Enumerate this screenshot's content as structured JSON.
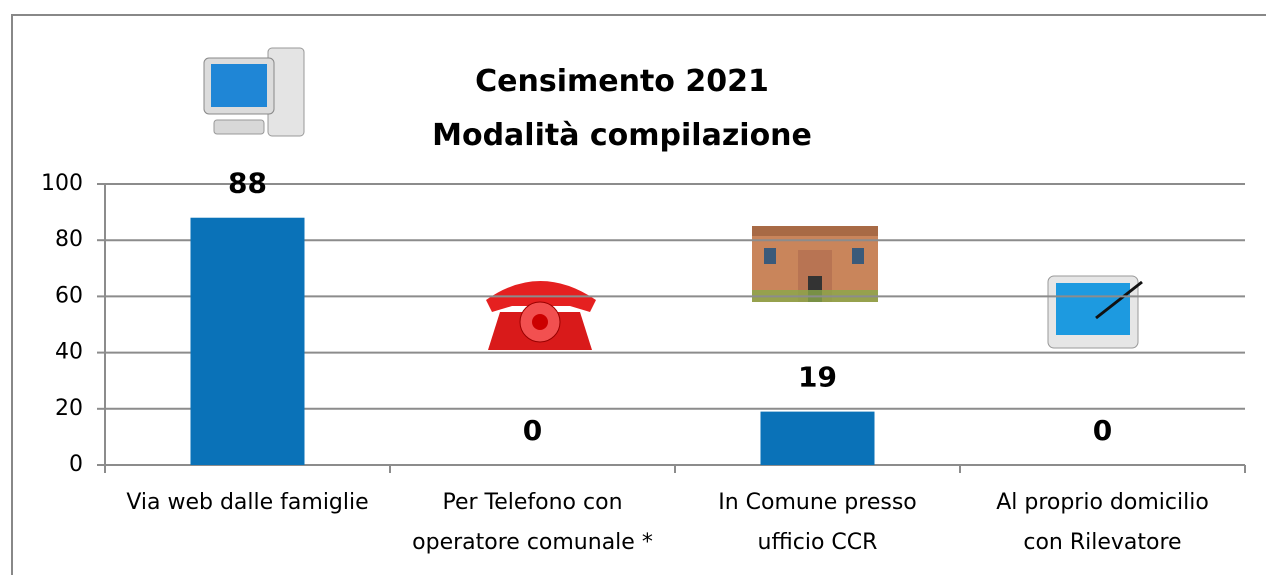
{
  "chart_data": {
    "type": "bar",
    "title": "Censimento 2021\nModalità compilazione",
    "categories": [
      "Via web dalle famiglie",
      "Per Telefono con\noperatore comunale *",
      "In Comune presso\nufficio CCR",
      "Al proprio domicilio\ncon Rilevatore"
    ],
    "values": [
      88,
      0,
      19,
      0
    ],
    "color": "#0a72b8",
    "ylim": [
      0,
      100
    ],
    "yticks": [
      0,
      20,
      40,
      60,
      80,
      100
    ],
    "grid": true
  }
}
